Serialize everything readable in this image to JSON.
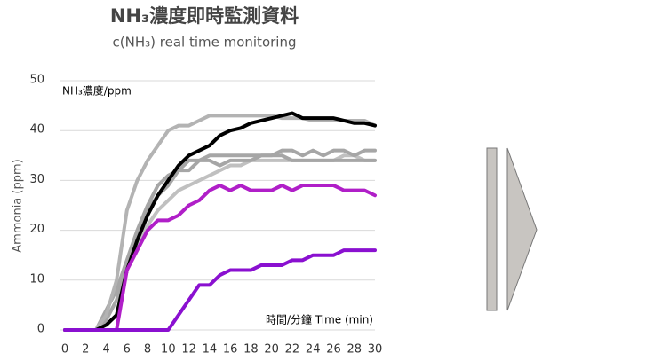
{
  "chart_data": {
    "type": "line",
    "title": "NH₃濃度即時監測資料",
    "subtitle": "c(NH₃) real time monitoring",
    "y_label": "Ammonia (ppm)",
    "annotations": [
      "NH₃濃度/ppm",
      "時間/分鐘 Time (min)"
    ],
    "x": [
      0,
      1,
      2,
      3,
      4,
      5,
      6,
      7,
      8,
      9,
      10,
      11,
      12,
      13,
      14,
      15,
      16,
      17,
      18,
      19,
      20,
      21,
      22,
      23,
      24,
      25,
      26,
      27,
      28,
      29,
      30
    ],
    "series": [
      {
        "color": "#c0c0c0",
        "values": [
          0,
          0,
          0,
          0,
          1,
          3,
          12,
          17,
          21,
          24,
          26,
          28,
          29,
          30,
          31,
          32,
          33,
          33,
          34,
          34,
          34,
          34,
          34,
          34,
          34,
          34,
          34,
          35,
          35,
          34,
          34
        ]
      },
      {
        "color": "#a6a6a6",
        "values": [
          0,
          0,
          0,
          0,
          2,
          6,
          13,
          19,
          24,
          27,
          29,
          32,
          32,
          34,
          34,
          33,
          34,
          34,
          34,
          35,
          35,
          35,
          34,
          34,
          34,
          34,
          34,
          34,
          34,
          34,
          34
        ]
      },
      {
        "color": "#a6a6a6",
        "values": [
          0,
          0,
          0,
          0,
          4,
          8,
          14,
          20,
          25,
          29,
          31,
          32,
          34,
          34,
          35,
          35,
          35,
          35,
          35,
          35,
          35,
          36,
          36,
          35,
          36,
          35,
          36,
          36,
          35,
          36,
          36
        ]
      },
      {
        "color": "#b3b3b3",
        "values": [
          0,
          0,
          0,
          0,
          3,
          10,
          24,
          30,
          34,
          37,
          40,
          41,
          41,
          42,
          43,
          43,
          43,
          43,
          43,
          43,
          43,
          42.5,
          42.5,
          42.5,
          42,
          42,
          42,
          42,
          42,
          42,
          41
        ]
      },
      {
        "color": "#000000",
        "values": [
          0,
          0,
          0,
          0,
          1,
          3,
          12,
          18,
          23,
          27,
          30,
          33,
          35,
          36,
          37,
          39,
          40,
          40.5,
          41.5,
          42,
          42.5,
          43,
          43.5,
          42.5,
          42.5,
          42.5,
          42.5,
          42,
          41.5,
          41.5,
          41
        ]
      },
      {
        "color": "#b01fc8",
        "values": [
          0,
          0,
          0,
          0,
          0,
          0,
          12,
          16,
          20,
          22,
          22,
          23,
          25,
          26,
          28,
          29,
          28,
          29,
          28,
          28,
          28,
          29,
          28,
          29,
          29,
          29,
          29,
          28,
          28,
          28,
          27
        ]
      },
      {
        "color": "#8a10d0",
        "values": [
          0,
          0,
          0,
          0,
          0,
          0,
          0,
          0,
          0,
          0,
          0,
          3,
          6,
          9,
          9,
          11,
          12,
          12,
          12,
          13,
          13,
          13,
          14,
          14,
          15,
          15,
          15,
          16,
          16,
          16,
          16
        ]
      }
    ],
    "xlim": [
      0,
      30
    ],
    "xticks": [
      0,
      2,
      4,
      6,
      8,
      10,
      12,
      14,
      16,
      18,
      20,
      22,
      24,
      26,
      28,
      30
    ],
    "ylim": [
      0,
      50
    ],
    "yticks": [
      0,
      10,
      20,
      30,
      40,
      50
    ],
    "grid": true
  }
}
